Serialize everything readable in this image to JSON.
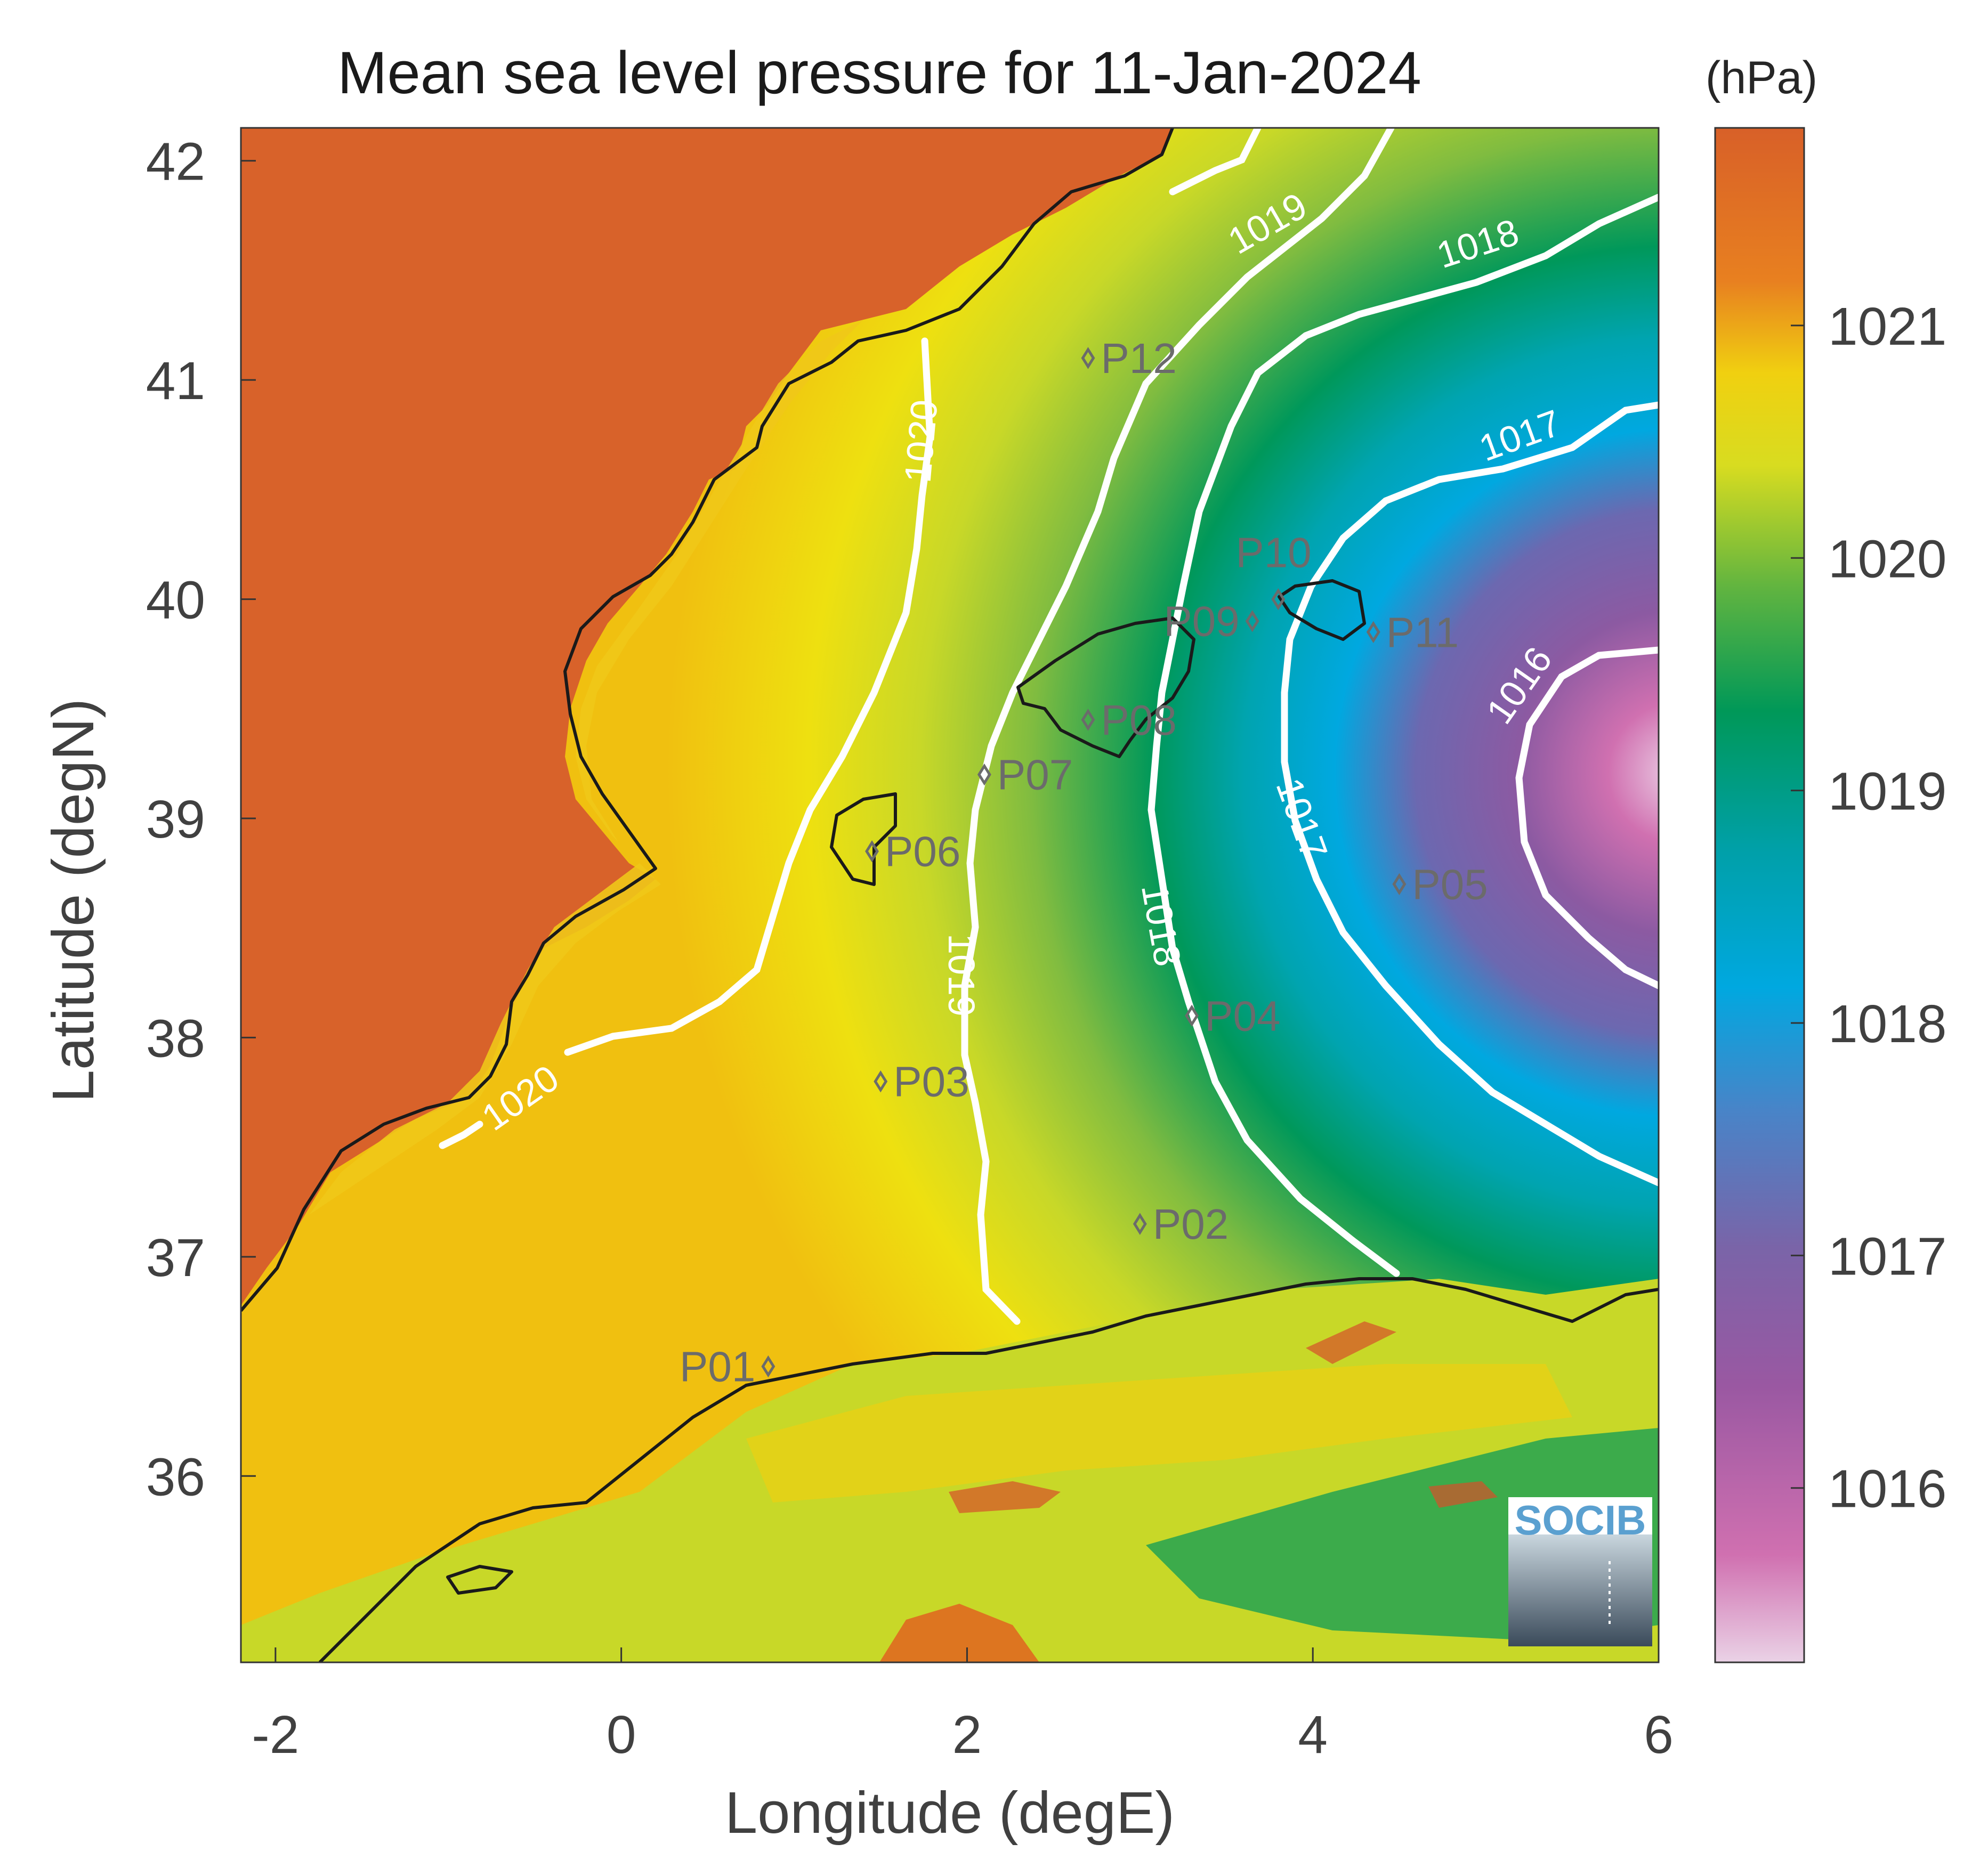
{
  "title": "Mean sea level pressure for 11-Jan-2024",
  "colorbar": {
    "unit": "(hPa)",
    "ticks": [
      "1021",
      "1020",
      "1019",
      "1018",
      "1017",
      "1016"
    ],
    "tick_values": [
      1021,
      1020,
      1019,
      1018,
      1017,
      1016
    ],
    "range": [
      1015.25,
      1021.85
    ],
    "colors": [
      "#e8c8e0",
      "#c8509a",
      "#8a58a0",
      "#5a78c0",
      "#00a8e0",
      "#00a0a0",
      "#00985a",
      "#88c040",
      "#e8e020",
      "#f0b010",
      "#d86020"
    ]
  },
  "axes": {
    "xlabel": "Longitude (degE)",
    "ylabel": "Latitude (degN)",
    "xlim": [
      -2.2,
      6
    ],
    "ylim": [
      35.15,
      42.15
    ],
    "xticks": [
      "-2",
      "0",
      "2",
      "4",
      "6"
    ],
    "xtick_values": [
      -2,
      0,
      2,
      4,
      6
    ],
    "yticks": [
      "42",
      "41",
      "40",
      "39",
      "38",
      "37",
      "36"
    ],
    "ytick_values": [
      42,
      41,
      40,
      39,
      38,
      37,
      36
    ]
  },
  "contour_labels": [
    "1020",
    "1020",
    "1019",
    "1019",
    "1018",
    "1018",
    "1017",
    "1017",
    "1016"
  ],
  "stations": [
    {
      "id": "P01",
      "lon": 0.85,
      "lat": 36.5
    },
    {
      "id": "P02",
      "lon": 3.0,
      "lat": 37.15
    },
    {
      "id": "P03",
      "lon": 1.5,
      "lat": 37.8
    },
    {
      "id": "P04",
      "lon": 3.3,
      "lat": 38.1
    },
    {
      "id": "P05",
      "lon": 4.5,
      "lat": 38.7
    },
    {
      "id": "P06",
      "lon": 1.45,
      "lat": 38.85
    },
    {
      "id": "P07",
      "lon": 2.1,
      "lat": 39.2
    },
    {
      "id": "P08",
      "lon": 2.7,
      "lat": 39.45
    },
    {
      "id": "P09",
      "lon": 3.65,
      "lat": 39.9
    },
    {
      "id": "P10",
      "lon": 3.8,
      "lat": 40.0
    },
    {
      "id": "P11",
      "lon": 4.35,
      "lat": 39.85
    },
    {
      "id": "P12",
      "lon": 2.7,
      "lat": 41.1
    }
  ],
  "logo": {
    "text": "SOCIB"
  }
}
